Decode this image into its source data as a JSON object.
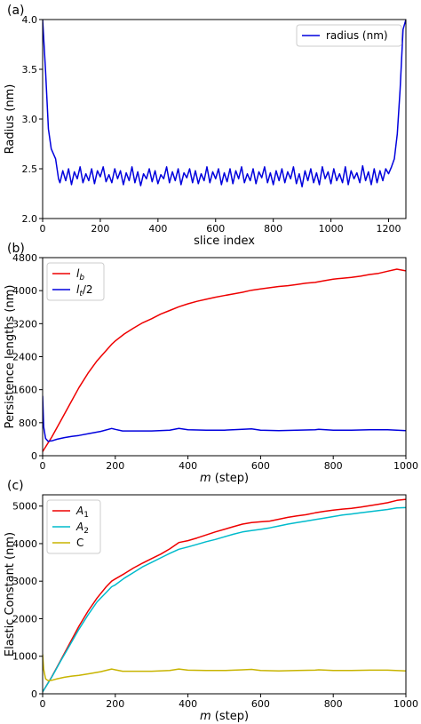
{
  "chart_data": [
    {
      "type": "line",
      "panel_label": "(a)",
      "xlabel": "slice index",
      "ylabel": "Radius (nm)",
      "xlim": [
        0,
        1260
      ],
      "ylim": [
        2.0,
        4.0
      ],
      "xticks": [
        0,
        200,
        400,
        600,
        800,
        1000,
        1200
      ],
      "yticks": [
        2.0,
        2.5,
        3.0,
        3.5,
        4.0
      ],
      "xtick_labels": [
        "0",
        "200",
        "400",
        "600",
        "800",
        "1000",
        "1200"
      ],
      "ytick_labels": [
        "2.0",
        "2.5",
        "3.0",
        "3.5",
        "4.0"
      ],
      "legend_position": "upper right",
      "series": [
        {
          "name": "radius (nm)",
          "color": "#0000dd",
          "x": [
            0,
            10,
            20,
            30,
            45,
            55,
            60,
            70,
            80,
            90,
            100,
            110,
            120,
            130,
            140,
            150,
            160,
            170,
            180,
            190,
            200,
            210,
            220,
            230,
            240,
            250,
            260,
            270,
            280,
            290,
            300,
            310,
            320,
            330,
            340,
            350,
            360,
            370,
            380,
            390,
            400,
            410,
            420,
            430,
            440,
            450,
            460,
            470,
            480,
            490,
            500,
            510,
            520,
            530,
            540,
            550,
            560,
            570,
            580,
            590,
            600,
            610,
            620,
            630,
            640,
            650,
            660,
            670,
            680,
            690,
            700,
            710,
            720,
            730,
            740,
            750,
            760,
            770,
            780,
            790,
            800,
            810,
            820,
            830,
            840,
            850,
            860,
            870,
            880,
            890,
            900,
            910,
            920,
            930,
            940,
            950,
            960,
            970,
            980,
            990,
            1000,
            1010,
            1020,
            1030,
            1040,
            1050,
            1060,
            1070,
            1080,
            1090,
            1100,
            1110,
            1120,
            1130,
            1140,
            1150,
            1160,
            1170,
            1180,
            1190,
            1200,
            1210,
            1220,
            1230,
            1240,
            1250,
            1260
          ],
          "y": [
            4.0,
            3.5,
            2.9,
            2.7,
            2.6,
            2.4,
            2.36,
            2.48,
            2.38,
            2.5,
            2.34,
            2.47,
            2.4,
            2.52,
            2.36,
            2.45,
            2.38,
            2.5,
            2.35,
            2.48,
            2.42,
            2.52,
            2.37,
            2.44,
            2.36,
            2.5,
            2.4,
            2.48,
            2.34,
            2.46,
            2.38,
            2.52,
            2.36,
            2.47,
            2.33,
            2.45,
            2.4,
            2.5,
            2.37,
            2.48,
            2.35,
            2.44,
            2.4,
            2.52,
            2.36,
            2.47,
            2.38,
            2.5,
            2.34,
            2.46,
            2.41,
            2.5,
            2.36,
            2.48,
            2.35,
            2.45,
            2.38,
            2.52,
            2.36,
            2.47,
            2.4,
            2.5,
            2.34,
            2.46,
            2.37,
            2.5,
            2.35,
            2.48,
            2.4,
            2.52,
            2.36,
            2.45,
            2.38,
            2.5,
            2.35,
            2.47,
            2.41,
            2.52,
            2.36,
            2.46,
            2.34,
            2.48,
            2.38,
            2.5,
            2.36,
            2.47,
            2.4,
            2.52,
            2.35,
            2.45,
            2.32,
            2.48,
            2.38,
            2.5,
            2.36,
            2.46,
            2.34,
            2.52,
            2.4,
            2.47,
            2.35,
            2.5,
            2.38,
            2.45,
            2.36,
            2.52,
            2.34,
            2.48,
            2.4,
            2.46,
            2.36,
            2.53,
            2.38,
            2.47,
            2.34,
            2.5,
            2.36,
            2.48,
            2.38,
            2.5,
            2.45,
            2.52,
            2.6,
            2.85,
            3.3,
            3.9,
            4.0
          ]
        }
      ]
    },
    {
      "type": "line",
      "panel_label": "(b)",
      "xlabel_italic": "m",
      "xlabel_rest": " (step)",
      "ylabel": "Persistence lengths (nm)",
      "xlim": [
        0,
        1000
      ],
      "ylim": [
        0,
        4800
      ],
      "xticks": [
        0,
        200,
        400,
        600,
        800,
        1000
      ],
      "yticks": [
        0,
        800,
        1600,
        2400,
        3200,
        4000,
        4800
      ],
      "xtick_labels": [
        "0",
        "200",
        "400",
        "600",
        "800",
        "1000"
      ],
      "ytick_labels": [
        "0",
        "800",
        "1600",
        "2400",
        "3200",
        "4000",
        "4800"
      ],
      "legend_position": "upper left",
      "series": [
        {
          "name": "l_b",
          "legend_main": "l",
          "legend_sub": "b",
          "legend_suffix": "",
          "color": "#ee0000",
          "x": [
            0,
            25,
            50,
            75,
            100,
            125,
            150,
            175,
            190,
            200,
            225,
            250,
            275,
            300,
            325,
            350,
            375,
            400,
            425,
            450,
            475,
            500,
            525,
            550,
            575,
            600,
            625,
            650,
            675,
            700,
            725,
            750,
            775,
            800,
            825,
            850,
            875,
            900,
            925,
            950,
            975,
            1000
          ],
          "y": [
            100,
            450,
            850,
            1250,
            1650,
            2000,
            2300,
            2550,
            2700,
            2780,
            2950,
            3090,
            3220,
            3320,
            3430,
            3520,
            3610,
            3680,
            3740,
            3790,
            3840,
            3880,
            3920,
            3960,
            4010,
            4040,
            4070,
            4100,
            4120,
            4150,
            4180,
            4200,
            4240,
            4280,
            4300,
            4320,
            4350,
            4390,
            4420,
            4470,
            4520,
            4480
          ]
        },
        {
          "name": "l_t/2",
          "legend_main": "l",
          "legend_sub": "t",
          "legend_suffix": "/2",
          "color": "#0000dd",
          "x": [
            0,
            3,
            8,
            15,
            25,
            40,
            60,
            80,
            100,
            130,
            160,
            190,
            200,
            220,
            250,
            300,
            350,
            375,
            400,
            450,
            500,
            550,
            575,
            600,
            650,
            700,
            750,
            760,
            800,
            850,
            900,
            950,
            1000
          ],
          "y": [
            1450,
            700,
            420,
            350,
            360,
            400,
            440,
            470,
            490,
            540,
            590,
            660,
            640,
            600,
            600,
            600,
            620,
            660,
            630,
            620,
            620,
            640,
            650,
            620,
            610,
            620,
            630,
            640,
            620,
            620,
            630,
            630,
            610
          ]
        }
      ]
    },
    {
      "type": "line",
      "panel_label": "(c)",
      "xlabel_italic": "m",
      "xlabel_rest": " (step)",
      "ylabel": "Elastic Constant (nm)",
      "xlim": [
        0,
        1000
      ],
      "ylim": [
        0,
        5300
      ],
      "xticks": [
        0,
        200,
        400,
        600,
        800,
        1000
      ],
      "yticks": [
        0,
        1000,
        2000,
        3000,
        4000,
        5000
      ],
      "xtick_labels": [
        "0",
        "200",
        "400",
        "600",
        "800",
        "1000"
      ],
      "ytick_labels": [
        "0",
        "1000",
        "2000",
        "3000",
        "4000",
        "5000"
      ],
      "legend_position": "upper left",
      "series": [
        {
          "name": "A_1",
          "legend_main": "A",
          "legend_sub": "1",
          "legend_suffix": "",
          "color": "#ee0000",
          "x": [
            0,
            25,
            50,
            75,
            100,
            125,
            150,
            175,
            190,
            200,
            225,
            250,
            275,
            300,
            325,
            350,
            375,
            400,
            425,
            450,
            475,
            500,
            525,
            550,
            575,
            600,
            625,
            650,
            675,
            700,
            725,
            750,
            775,
            800,
            825,
            850,
            875,
            900,
            925,
            950,
            975,
            1000
          ],
          "y": [
            50,
            450,
            900,
            1350,
            1800,
            2200,
            2550,
            2850,
            3000,
            3060,
            3200,
            3350,
            3480,
            3600,
            3720,
            3860,
            4030,
            4080,
            4150,
            4230,
            4310,
            4380,
            4450,
            4520,
            4560,
            4580,
            4600,
            4650,
            4700,
            4740,
            4770,
            4820,
            4860,
            4890,
            4920,
            4940,
            4970,
            5010,
            5050,
            5090,
            5150,
            5180
          ]
        },
        {
          "name": "A_2",
          "legend_main": "A",
          "legend_sub": "2",
          "legend_suffix": "",
          "color": "#00bbcc",
          "x": [
            0,
            25,
            50,
            75,
            100,
            125,
            150,
            175,
            190,
            200,
            225,
            250,
            275,
            300,
            325,
            350,
            375,
            400,
            425,
            450,
            475,
            500,
            525,
            550,
            575,
            600,
            625,
            650,
            675,
            700,
            725,
            750,
            775,
            800,
            825,
            850,
            875,
            900,
            925,
            950,
            975,
            1000
          ],
          "y": [
            50,
            440,
            880,
            1300,
            1720,
            2100,
            2450,
            2700,
            2850,
            2900,
            3080,
            3230,
            3380,
            3500,
            3620,
            3740,
            3850,
            3910,
            3980,
            4050,
            4110,
            4180,
            4250,
            4310,
            4350,
            4380,
            4420,
            4470,
            4520,
            4560,
            4600,
            4640,
            4680,
            4720,
            4760,
            4790,
            4820,
            4850,
            4880,
            4910,
            4950,
            4960
          ]
        },
        {
          "name": "C",
          "legend_main": "C",
          "legend_sub": "",
          "legend_suffix": "",
          "color": "#c8b400",
          "x": [
            0,
            3,
            8,
            15,
            25,
            40,
            60,
            80,
            100,
            130,
            160,
            190,
            200,
            220,
            250,
            300,
            350,
            375,
            400,
            450,
            500,
            550,
            575,
            600,
            650,
            700,
            750,
            760,
            800,
            850,
            900,
            950,
            1000
          ],
          "y": [
            1050,
            650,
            400,
            350,
            360,
            400,
            440,
            470,
            490,
            540,
            590,
            660,
            640,
            600,
            600,
            600,
            620,
            660,
            630,
            620,
            620,
            640,
            650,
            620,
            610,
            620,
            630,
            640,
            620,
            620,
            630,
            630,
            610
          ]
        }
      ]
    }
  ]
}
